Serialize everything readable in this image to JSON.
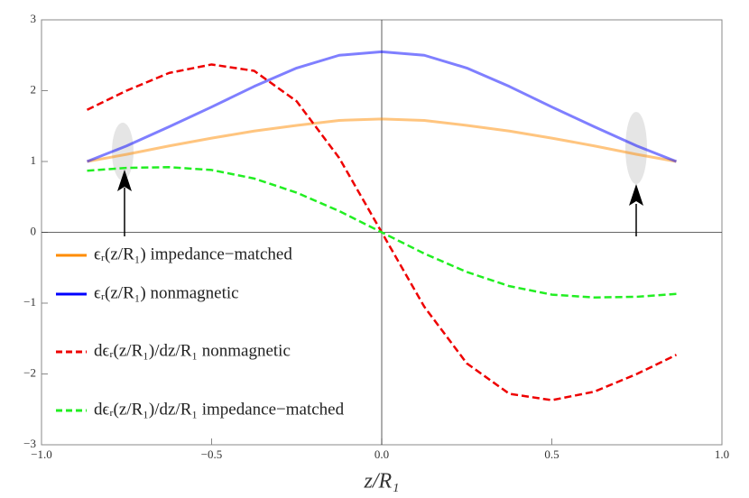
{
  "chart_data": {
    "type": "line",
    "x_label": "z/R₁",
    "x": [
      -0.866,
      -0.75,
      -0.625,
      -0.5,
      -0.375,
      -0.25,
      -0.125,
      0,
      0.125,
      0.25,
      0.375,
      0.5,
      0.625,
      0.75,
      0.866
    ],
    "series": [
      {
        "name": "ϵᵣ(z/R₁) impedance−matched",
        "color": "#ff8c00",
        "dashed": false,
        "values": [
          1.0,
          1.1,
          1.22,
          1.33,
          1.43,
          1.51,
          1.58,
          1.6,
          1.58,
          1.51,
          1.43,
          1.33,
          1.22,
          1.1,
          1.0
        ]
      },
      {
        "name": "ϵᵣ(z/R₁) nonmagnetic",
        "color": "#0000ff",
        "dashed": false,
        "values": [
          1.0,
          1.22,
          1.49,
          1.77,
          2.06,
          2.32,
          2.5,
          2.55,
          2.5,
          2.32,
          2.06,
          1.77,
          1.49,
          1.22,
          1.0
        ]
      },
      {
        "name": "dϵᵣ(z/R₁)/dz/R₁ nonmagnetic",
        "color": "#ee0000",
        "dashed": true,
        "values": [
          1.73,
          2.0,
          2.25,
          2.37,
          2.28,
          1.85,
          1.05,
          0,
          -1.05,
          -1.85,
          -2.28,
          -2.37,
          -2.25,
          -2.0,
          -1.73
        ]
      },
      {
        "name": "dϵᵣ(z/R₁)/dz/R₁ impedance−matched",
        "color": "#22ee22",
        "dashed": true,
        "values": [
          0.87,
          0.91,
          0.92,
          0.88,
          0.76,
          0.56,
          0.3,
          0,
          -0.3,
          -0.56,
          -0.76,
          -0.88,
          -0.92,
          -0.91,
          -0.87
        ]
      }
    ],
    "xlim": [
      -1,
      1
    ],
    "ylim": [
      -3,
      3
    ],
    "xticks": [
      {
        "value": -1,
        "label": "−1.0"
      },
      {
        "value": -0.5,
        "label": "−0.5"
      },
      {
        "value": 0,
        "label": "0.0"
      },
      {
        "value": 0.5,
        "label": "0.5"
      },
      {
        "value": 1,
        "label": "1.0"
      }
    ],
    "yticks": [
      {
        "value": -3,
        "label": "−3"
      },
      {
        "value": -2,
        "label": "−2"
      },
      {
        "value": -1,
        "label": "−1"
      },
      0,
      1,
      2,
      3
    ]
  }
}
